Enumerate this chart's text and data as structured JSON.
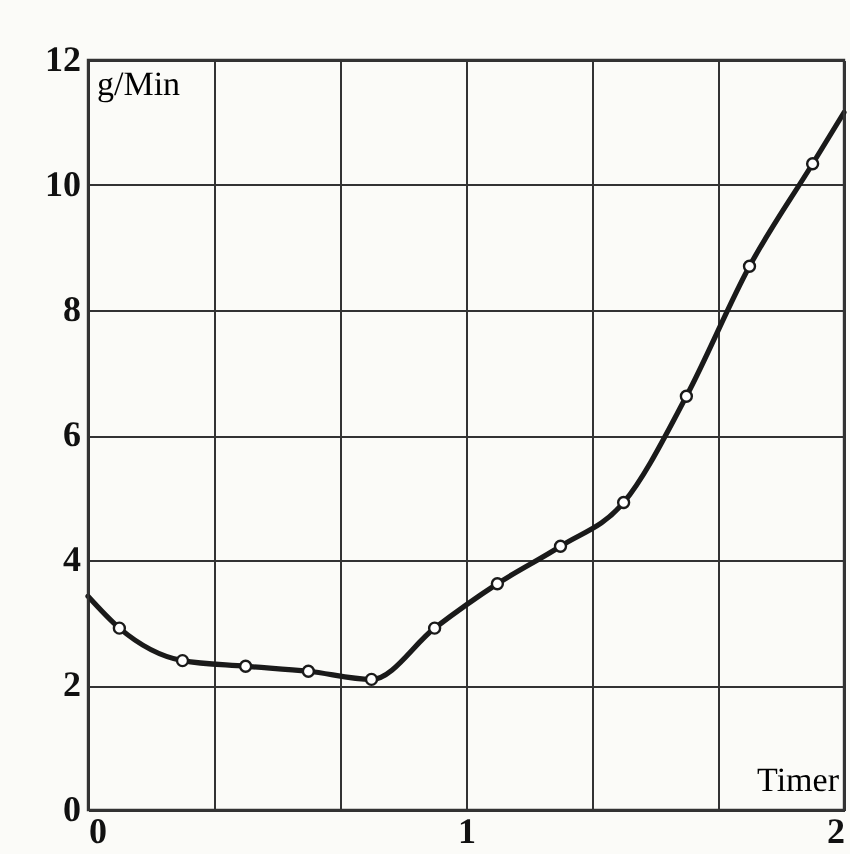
{
  "chart_data": {
    "type": "line",
    "xlabel": "Timer",
    "ylabel": "g/Min",
    "xlim": [
      0,
      2
    ],
    "ylim": [
      0,
      12
    ],
    "xticks": [
      0,
      {
        "value": 0.3333,
        "label": null
      },
      {
        "value": 0.6667,
        "label": null
      },
      1,
      {
        "value": 1.3333,
        "label": null
      },
      {
        "value": 1.6667,
        "label": null
      },
      2
    ],
    "yticks": [
      0,
      2,
      4,
      6,
      8,
      10,
      12
    ],
    "grid": true,
    "line_style": "solid",
    "series": [
      {
        "color": "#1a1a1a",
        "marker": "none",
        "x": [
          0,
          0.083,
          0.25,
          0.417,
          0.583,
          0.75,
          0.917,
          1.083,
          1.25,
          1.417,
          1.583,
          1.75,
          1.917,
          2
        ],
        "values": [
          3.42,
          2.91,
          2.39,
          2.3,
          2.22,
          2.09,
          2.91,
          3.62,
          4.22,
          4.92,
          6.62,
          8.7,
          10.34,
          11.16
        ]
      },
      {
        "type": "scatter",
        "color": "#1a1a1a",
        "marker": "circle",
        "x": [
          0.083,
          0.25,
          0.417,
          0.583,
          0.75,
          0.917,
          1.083,
          1.25,
          1.417,
          1.583,
          1.75,
          1.917
        ],
        "values": [
          2.91,
          2.39,
          2.3,
          2.22,
          2.09,
          2.91,
          3.62,
          4.22,
          4.92,
          6.62,
          8.7,
          10.34
        ]
      }
    ]
  }
}
